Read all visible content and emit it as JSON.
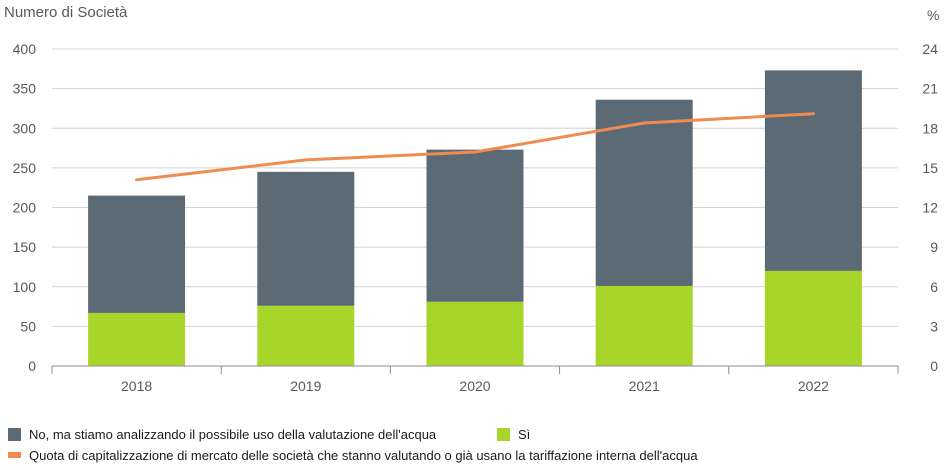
{
  "chart_data": {
    "type": "bar",
    "stacked": true,
    "categories": [
      "2018",
      "2019",
      "2020",
      "2021",
      "2022"
    ],
    "ylabel_left": "Numero di Società",
    "ylabel_right": "%",
    "ylim_left": [
      0,
      400
    ],
    "ylim_right": [
      0,
      24
    ],
    "yticks_left": [
      "0",
      "50",
      "100",
      "150",
      "200",
      "250",
      "300",
      "350",
      "400"
    ],
    "yticks_right": [
      "0",
      "3",
      "6",
      "9",
      "12",
      "15",
      "18",
      "21",
      "24"
    ],
    "grid": true,
    "legend_position": "bottom",
    "series": [
      {
        "name": "Sì",
        "kind": "bar",
        "axis": "left",
        "color": "#a8d52a",
        "values": [
          67,
          76,
          81,
          101,
          120
        ]
      },
      {
        "name": "No, ma stiamo analizzando il possibile uso della valutazione dell'acqua",
        "kind": "bar",
        "axis": "left",
        "color": "#5c6a75",
        "values": [
          148,
          169,
          192,
          235,
          253
        ]
      },
      {
        "name": "Quota di capitalizzazione di mercato delle società che stanno valutando o già usano la tariffazione interna dell'acqua",
        "kind": "line",
        "axis": "right",
        "color": "#ef8c4f",
        "values": [
          14.1,
          15.6,
          16.2,
          18.4,
          19.1
        ]
      }
    ]
  }
}
